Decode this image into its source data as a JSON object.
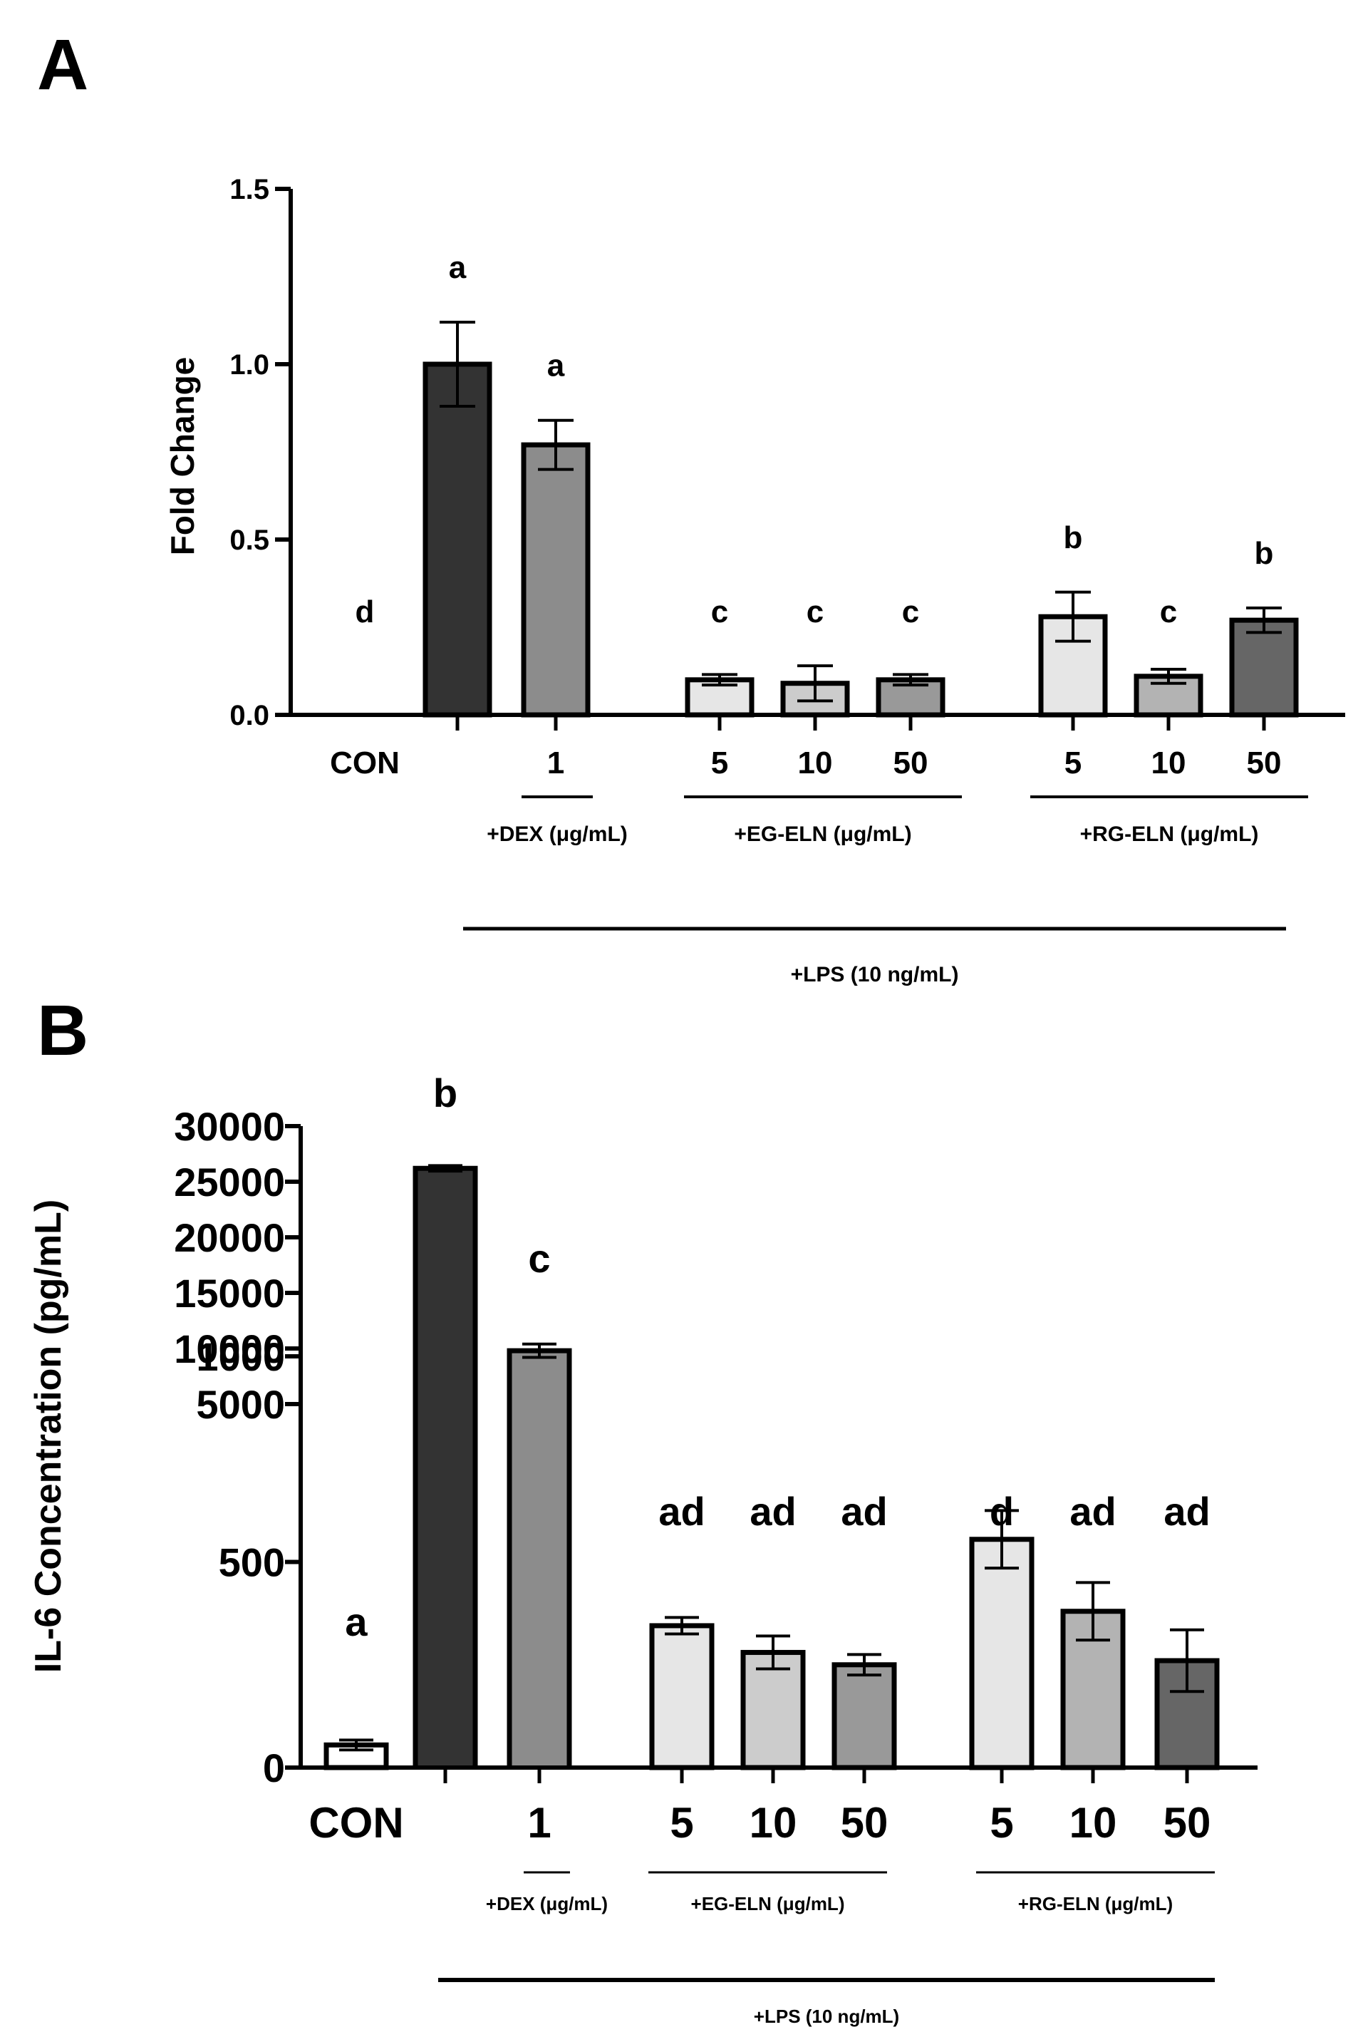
{
  "panels": {
    "a": {
      "letter": "A"
    },
    "b": {
      "letter": "B"
    }
  },
  "chart_data": [
    {
      "panel": "A",
      "type": "bar",
      "ylabel": "Fold Change",
      "ylim": [
        0,
        1.5
      ],
      "yticks": [
        "0.0",
        "0.5",
        "1.0",
        "1.5"
      ],
      "categories": [
        "CON",
        "LPS",
        "1",
        "5",
        "10",
        "50",
        "5",
        "10",
        "50"
      ],
      "tick_labels": [
        "CON",
        "",
        "1",
        "5",
        "10",
        "50",
        "5",
        "10",
        "50"
      ],
      "values": [
        0.0,
        1.0,
        0.77,
        0.1,
        0.09,
        0.1,
        0.28,
        0.11,
        0.27
      ],
      "errors": [
        0.0,
        0.12,
        0.07,
        0.015,
        0.05,
        0.015,
        0.07,
        0.02,
        0.035
      ],
      "letters": [
        "d",
        "a",
        "a",
        "c",
        "c",
        "c",
        "b",
        "c",
        "b"
      ],
      "colors": [
        "#ffffff",
        "#333333",
        "#8c8c8c",
        "#e6e6e6",
        "#cccccc",
        "#999999",
        "#e6e6e6",
        "#b3b3b3",
        "#666666"
      ],
      "groups": [
        "+DEX (μg/mL)",
        "+EG-ELN (μg/mL)",
        "+RG-ELN (μg/mL)"
      ],
      "lps_label": "+LPS (10 ng/mL)"
    },
    {
      "panel": "B",
      "type": "bar",
      "ylabel": "IL-6 Concentration (pg/mL)",
      "axis_break": true,
      "lower_ylim": [
        0,
        1000
      ],
      "upper_ylim": [
        5000,
        30000
      ],
      "lower_yticks": [
        "0",
        "500",
        "1000"
      ],
      "upper_yticks": [
        "5000",
        "10000",
        "15000",
        "20000",
        "25000",
        "30000"
      ],
      "categories": [
        "CON",
        "LPS",
        "1",
        "5",
        "10",
        "50",
        "5",
        "10",
        "50"
      ],
      "tick_labels": [
        "CON",
        "",
        "1",
        "5",
        "10",
        "50",
        "5",
        "10",
        "50"
      ],
      "values": [
        55,
        26200,
        9800,
        345,
        280,
        250,
        555,
        380,
        260
      ],
      "errors": [
        12,
        250,
        600,
        20,
        40,
        25,
        70,
        70,
        75
      ],
      "letters": [
        "a",
        "b",
        "c",
        "ad",
        "ad",
        "ad",
        "d",
        "ad",
        "ad"
      ],
      "colors": [
        "#ffffff",
        "#333333",
        "#8c8c8c",
        "#e6e6e6",
        "#cccccc",
        "#999999",
        "#e6e6e6",
        "#b3b3b3",
        "#666666"
      ],
      "groups": [
        "+DEX (μg/mL)",
        "+EG-ELN (μg/mL)",
        "+RG-ELN (μg/mL)"
      ],
      "lps_label": "+LPS (10 ng/mL)"
    }
  ]
}
